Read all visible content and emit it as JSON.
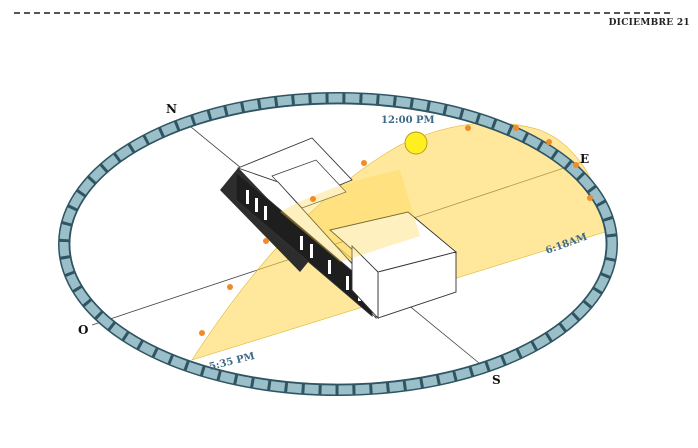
{
  "header": {
    "date": "DICIEMBRE 21"
  },
  "compass": {
    "north": "N",
    "south": "S",
    "east": "E",
    "west": "O"
  },
  "sun_times": {
    "noon": "12:00 PM",
    "sunrise": "6:18AM",
    "sunset": "5:35 PM"
  },
  "colors": {
    "sun_path_fill": "#ffd54a",
    "sun": "#ffee22",
    "ring": "#9bbfc9",
    "ring_edge": "#2f5563",
    "hour_dot": "#f08b2a",
    "time_label": "#3d6a88"
  }
}
